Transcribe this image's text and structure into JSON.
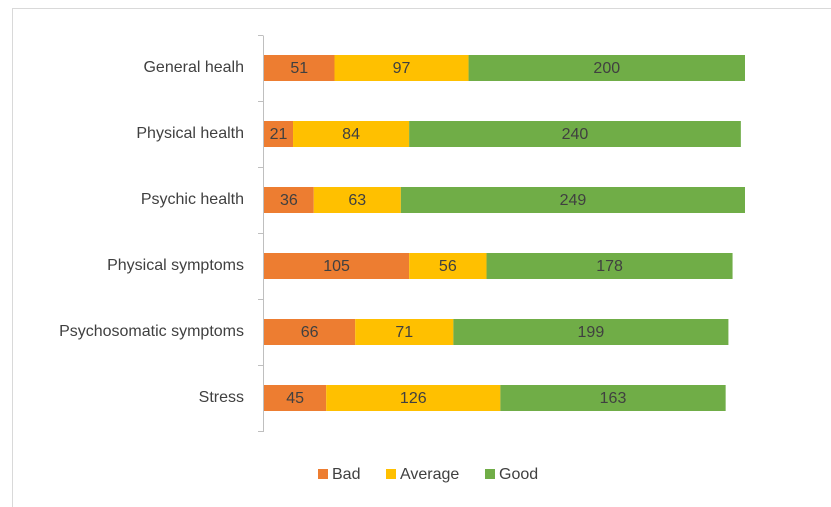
{
  "chart_data": {
    "type": "stacked-bar-horizontal",
    "categories": [
      "General healh",
      "Physical health",
      "Psychic health",
      "Physical symptoms",
      "Psychosomatic symptoms",
      "Stress"
    ],
    "series": [
      {
        "name": "Bad",
        "color": "#ed7d31",
        "values": [
          51,
          21,
          36,
          105,
          66,
          45
        ]
      },
      {
        "name": "Average",
        "color": "#ffc000",
        "values": [
          97,
          84,
          63,
          56,
          71,
          126
        ]
      },
      {
        "name": "Good",
        "color": "#70ad47",
        "values": [
          200,
          240,
          249,
          178,
          199,
          163
        ]
      }
    ],
    "legend": "bottom"
  }
}
